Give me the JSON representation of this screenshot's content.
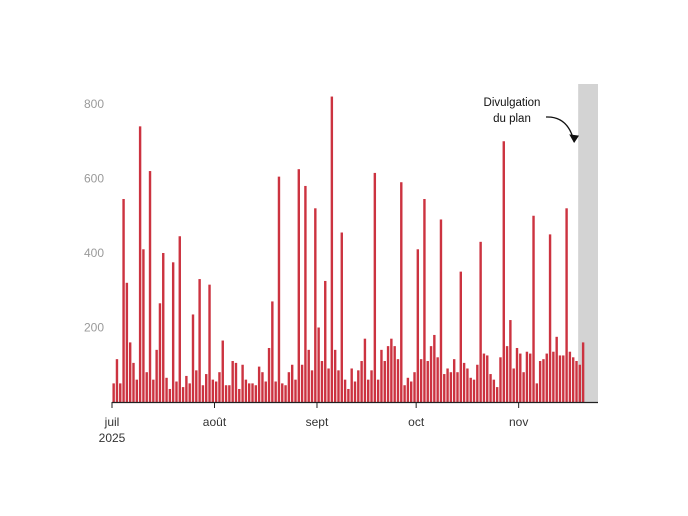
{
  "chart_data": {
    "type": "bar",
    "title": "",
    "xlabel": "",
    "ylabel": "",
    "x_start": "2025-07-01",
    "x_end": "2025-11-24",
    "ylim": [
      0,
      860
    ],
    "y_ticks": [
      200,
      400,
      600,
      800
    ],
    "x_ticks": [
      {
        "date": "2025-07-01",
        "label": "juil",
        "sub": "2025"
      },
      {
        "date": "2025-08-01",
        "label": "août",
        "sub": ""
      },
      {
        "date": "2025-09-01",
        "label": "sept",
        "sub": ""
      },
      {
        "date": "2025-10-01",
        "label": "oct",
        "sub": ""
      },
      {
        "date": "2025-11-01",
        "label": "nov",
        "sub": ""
      }
    ],
    "grid": false,
    "legend": "none",
    "bar_color": "#cc3340",
    "highlight": {
      "start": "2025-11-19",
      "end": "2025-11-24",
      "color": "#d3d3d3"
    },
    "annotation": {
      "lines": [
        "Divulgation",
        "du plan"
      ],
      "points_to": "2025-11-19"
    },
    "series": [
      {
        "start": "2025-07-01",
        "values": [
          50,
          115,
          50,
          545,
          320,
          160,
          105,
          60,
          740,
          410,
          80,
          620,
          60,
          140,
          265,
          400,
          65,
          35,
          375,
          55,
          445,
          40,
          70,
          50,
          235,
          85,
          330,
          45,
          75,
          315,
          60,
          55,
          80,
          165,
          45,
          45,
          110,
          105,
          35,
          100,
          60,
          50,
          50,
          45,
          95,
          80,
          55,
          145,
          270,
          55,
          605,
          50,
          45,
          80,
          100,
          60,
          625,
          100,
          580,
          140,
          85,
          520,
          200,
          110,
          325,
          90,
          820,
          140,
          85,
          455,
          60,
          35,
          90,
          55,
          85,
          110,
          170,
          60,
          85,
          615,
          60,
          140,
          110,
          150,
          170,
          150,
          115,
          590,
          45,
          65,
          55,
          80,
          410,
          115,
          545,
          110,
          150,
          180,
          120,
          490,
          75,
          90,
          80,
          115,
          80,
          350,
          105,
          90,
          65,
          60,
          100,
          430,
          130,
          125,
          75,
          60,
          40,
          120,
          700,
          150,
          220,
          90,
          145,
          130,
          80,
          135,
          130,
          500,
          50,
          110,
          115,
          130,
          450,
          135,
          175,
          125,
          125,
          520,
          135,
          120,
          110,
          100,
          160
        ]
      }
    ]
  }
}
